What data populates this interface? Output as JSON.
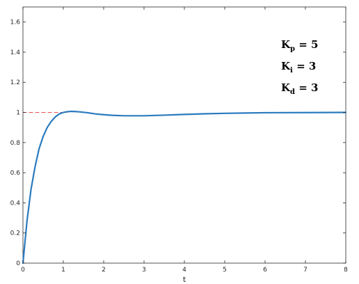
{
  "chart_data": {
    "type": "line",
    "title": "",
    "xlabel": "t",
    "ylabel": "",
    "xlim": [
      0,
      8
    ],
    "ylim": [
      0,
      1.7
    ],
    "grid": false,
    "x_ticks": [
      0,
      1,
      2,
      3,
      4,
      5,
      6,
      7,
      8
    ],
    "x_tick_labels": [
      "0",
      "1",
      "2",
      "3",
      "4",
      "5",
      "6",
      "7",
      "8"
    ],
    "y_ticks": [
      0,
      0.2,
      0.4,
      0.6,
      0.8,
      1,
      1.2,
      1.4,
      1.6
    ],
    "y_tick_labels": [
      "0",
      "0.2",
      "0.4",
      "0.6",
      "0.8",
      "1",
      "1.2",
      "1.4",
      "1.6"
    ],
    "series": [
      {
        "color": "#2a7bbf",
        "style": "solid",
        "x": [
          0,
          0.1,
          0.2,
          0.3,
          0.4,
          0.5,
          0.6,
          0.7,
          0.8,
          0.9,
          1.0,
          1.1,
          1.2,
          1.3,
          1.4,
          1.6,
          1.8,
          2.0,
          2.2,
          2.5,
          3.0,
          3.5,
          4.0,
          4.5,
          5.0,
          5.5,
          6.0,
          7.0,
          8.0
        ],
        "y": [
          0,
          0.28,
          0.49,
          0.64,
          0.76,
          0.84,
          0.9,
          0.94,
          0.97,
          0.99,
          1.0,
          1.005,
          1.007,
          1.006,
          1.004,
          0.998,
          0.99,
          0.985,
          0.981,
          0.978,
          0.978,
          0.982,
          0.987,
          0.991,
          0.994,
          0.996,
          0.998,
          0.999,
          1.0
        ]
      },
      {
        "color": "#e84c4c",
        "style": "dashed",
        "x": [
          0,
          1.1
        ],
        "y": [
          1,
          1
        ]
      }
    ],
    "annotations": [
      {
        "main": "K",
        "sub": "p",
        "rest": " = 5"
      },
      {
        "main": "K",
        "sub": "i",
        "rest": " = 3"
      },
      {
        "main": "K",
        "sub": "d",
        "rest": " = 3"
      }
    ]
  }
}
